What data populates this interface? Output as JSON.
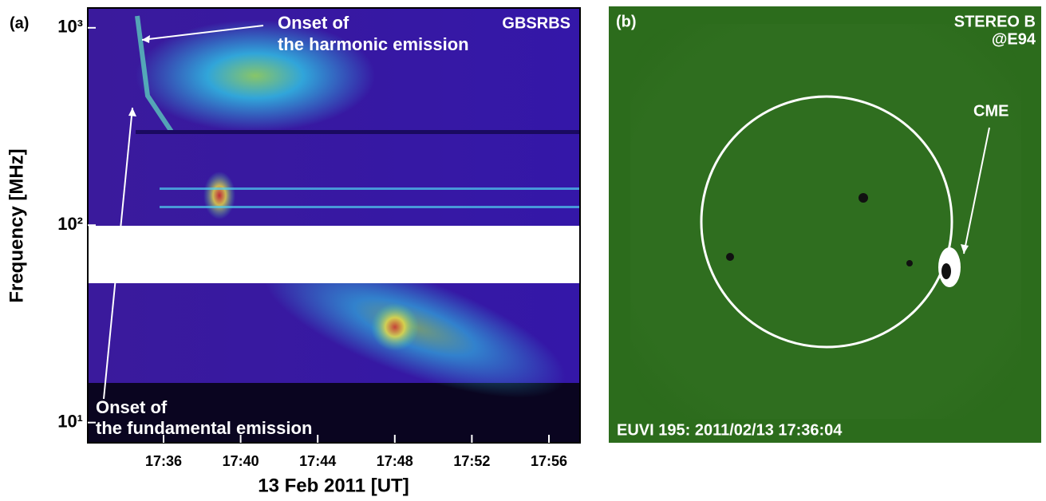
{
  "panels": [
    {
      "label": "(a)",
      "title": "GBSRBS",
      "ylabel": "Frequency [MHz]",
      "xlabel": "13 Feb 2011 [UT]",
      "ylog": true,
      "ylim": [
        7.9,
        1260
      ],
      "yticks": [
        {
          "value": 10,
          "label": "10¹"
        },
        {
          "value": 100,
          "label": "10²"
        },
        {
          "value": 1000,
          "label": "10³"
        }
      ],
      "xticks": [
        "17:36",
        "17:40",
        "17:44",
        "17:48",
        "17:52",
        "17:56"
      ],
      "annotations": [
        "Onset of",
        "the harmonic emission",
        "Onset of",
        "the fundamental emission"
      ]
    },
    {
      "label": "(b)",
      "title": [
        "STEREO B",
        "@E94"
      ],
      "annotation": "CME",
      "caption": "EUVI 195: 2011/02/13 17:36:04"
    }
  ]
}
